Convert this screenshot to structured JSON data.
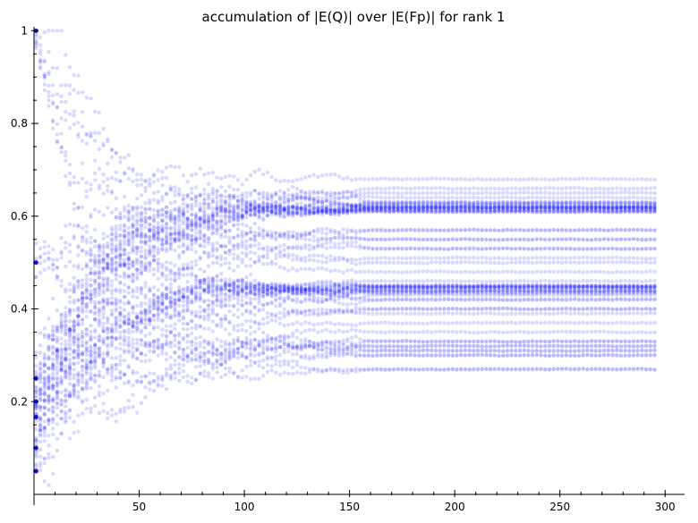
{
  "chart_data": {
    "type": "scatter",
    "title": "accumulation of |E(Q)| over |E(Fp)| for rank 1",
    "xlabel": "",
    "ylabel": "",
    "xlim": [
      0,
      300
    ],
    "ylim": [
      0,
      1.02
    ],
    "x_ticks": [
      50,
      100,
      150,
      200,
      250,
      300
    ],
    "y_ticks": [
      0.2,
      0.4,
      0.6,
      0.8,
      1
    ],
    "grid": false,
    "point_color": "#0000ff",
    "point_alpha": 0.15,
    "marker": "circle",
    "series_count": 60,
    "series_x_range": [
      1,
      295
    ],
    "series_start_values": [
      1,
      0.5,
      0.25,
      0.2,
      0.1667,
      0.1,
      0.05
    ],
    "series_plateau_values": [
      0.27,
      0.3,
      0.31,
      0.32,
      0.33,
      0.35,
      0.37,
      0.39,
      0.4,
      0.42,
      0.43,
      0.44,
      0.45,
      0.46,
      0.48,
      0.5,
      0.51,
      0.53,
      0.55,
      0.57,
      0.58,
      0.6,
      0.61,
      0.62,
      0.63,
      0.64,
      0.65,
      0.66,
      0.68
    ],
    "plateau_starts_at_x": 155,
    "note_density": "Dense bands near 0.62 and 0.44; a tighter cluster near 0.31-0.33."
  }
}
